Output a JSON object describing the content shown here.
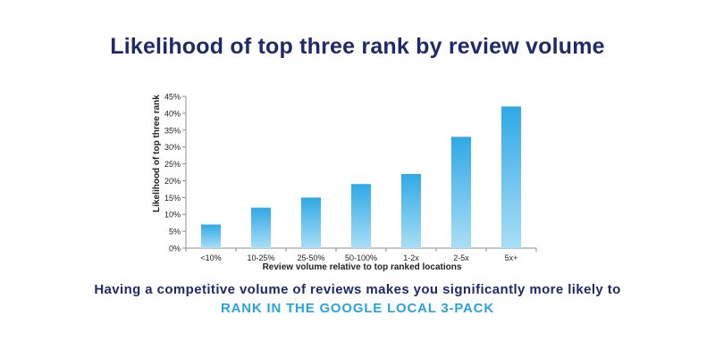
{
  "title": "Likelihood of top three rank by review volume",
  "footer": {
    "line1": "Having a competitive volume of reviews makes you significantly more likely to",
    "line2": "RANK IN THE GOOGLE LOCAL 3-PACK"
  },
  "colors": {
    "title": "#1f2a6b",
    "accent": "#29a3dc",
    "bar_top": "#2fa9e6",
    "bar_bottom": "#a9def6"
  },
  "chart_data": {
    "type": "bar",
    "categories": [
      "<10%",
      "10-25%",
      "25-50%",
      "50-100%",
      "1-2x",
      "2-5x",
      "5x+"
    ],
    "values": [
      7,
      12,
      15,
      19,
      22,
      33,
      42
    ],
    "ylabel": "Likelihood of top three rank",
    "xlabel": "Review volume relative to top ranked locations",
    "ylim": [
      0,
      45
    ],
    "yticks": [
      0,
      5,
      10,
      15,
      20,
      25,
      30,
      35,
      40,
      45
    ],
    "ytick_labels": [
      "0%",
      "5%",
      "10%",
      "15%",
      "20%",
      "25%",
      "30%",
      "35%",
      "40%",
      "45%"
    ],
    "grid": false,
    "legend": "none"
  }
}
